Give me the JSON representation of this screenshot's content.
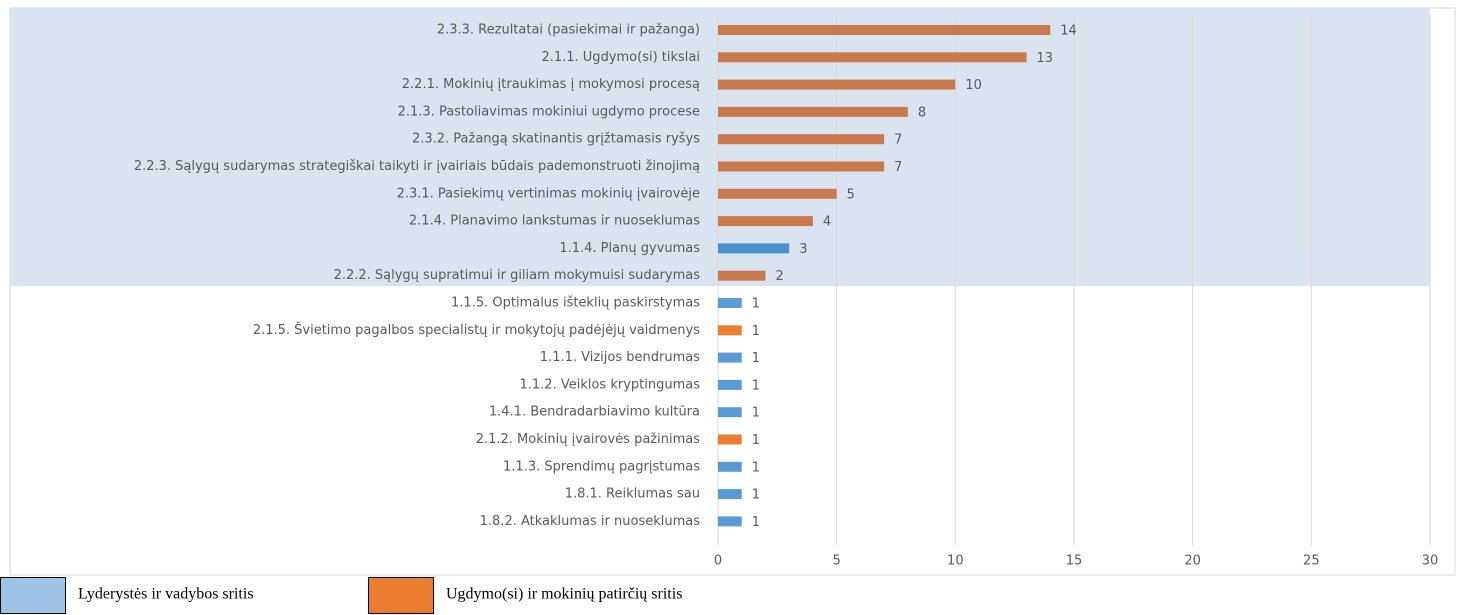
{
  "chart_data": {
    "type": "bar",
    "orientation": "horizontal",
    "categories": [
      "2.3.3. Rezultatai (pasiekimai ir pažanga)",
      "2.1.1. Ugdymo(si) tikslai",
      "2.2.1. Mokinių įtraukimas į mokymosi procesą",
      "2.1.3. Pastoliavimas mokiniui ugdymo procese",
      "2.3.2. Pažangą skatinantis grįžtamasis ryšys",
      "2.2.3. Sąlygų sudarymas strategiškai taikyti ir įvairiais būdais pademonstruoti žinojimą",
      "2.3.1. Pasiekimų vertinimas mokinių įvairovėje",
      "2.1.4. Planavimo lankstumas ir nuoseklumas",
      "1.1.4. Planų gyvumas",
      "2.2.2. Sąlygų supratimui ir giliam mokymuisi sudarymas",
      "1.1.5. Optimalus išteklių paskirstymas",
      "2.1.5. Švietimo pagalbos specialistų ir mokytojų padėjėjų vaidmenys",
      "1.1.1. Vizijos bendrumas",
      "1.1.2. Veiklos kryptingumas",
      "1.4.1. Bendradarbiavimo kultūra",
      "2.1.2. Mokinių įvairovės pažinimas",
      "1.1.3. Sprendimų pagrįstumas",
      "1.8.1. Reiklumas sau",
      "1.8.2. Atkaklumas ir nuoseklumas"
    ],
    "values": [
      14,
      13,
      10,
      8,
      7,
      7,
      5,
      4,
      3,
      2,
      1,
      1,
      1,
      1,
      1,
      1,
      1,
      1,
      1
    ],
    "colors": [
      "#c97a4c",
      "#c97a4c",
      "#c97a4c",
      "#c97a4c",
      "#c97a4c",
      "#c97a4c",
      "#c97a4c",
      "#c97a4c",
      "#4a8fd0",
      "#c97a4c",
      "#5b9bd5",
      "#ed7d31",
      "#5b9bd5",
      "#5b9bd5",
      "#5b9bd5",
      "#ed7d31",
      "#5b9bd5",
      "#5b9bd5",
      "#5b9bd5"
    ],
    "xlim": [
      0,
      30
    ],
    "xticks": [
      0,
      5,
      10,
      15,
      20,
      25,
      30
    ],
    "grid": true,
    "legend": [
      {
        "name": "Lyderystės ir vadybos sritis",
        "color": "#9dc3e6"
      },
      {
        "name": "Ugdymo(si) ir mokinių patirčių sritis",
        "color": "#ed7d31"
      }
    ]
  }
}
